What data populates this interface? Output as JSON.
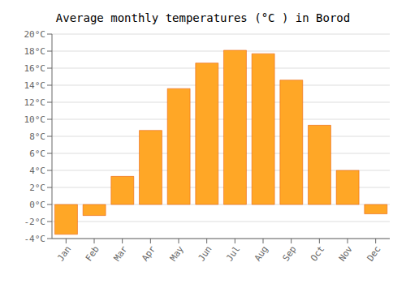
{
  "chart_data": {
    "type": "bar",
    "title": "Average monthly temperatures (°C ) in Borod",
    "categories": [
      "Jan",
      "Feb",
      "Mar",
      "Apr",
      "May",
      "Jun",
      "Jul",
      "Aug",
      "Sep",
      "Oct",
      "Nov",
      "Dec"
    ],
    "values": [
      -3.5,
      -1.3,
      3.3,
      8.7,
      13.6,
      16.6,
      18.1,
      17.7,
      14.6,
      9.3,
      4.0,
      -1.1
    ],
    "color": "#FFA726",
    "ylim": [
      -4,
      20
    ],
    "yticks": [
      {
        "value": -4,
        "label": "-4°C"
      },
      {
        "value": -2,
        "label": "-2°C"
      },
      {
        "value": 0,
        "label": "0°C"
      },
      {
        "value": 2,
        "label": "2°C"
      },
      {
        "value": 4,
        "label": "4°C"
      },
      {
        "value": 6,
        "label": "6°C"
      },
      {
        "value": 8,
        "label": "8°C"
      },
      {
        "value": 10,
        "label": "10°C"
      },
      {
        "value": 12,
        "label": "12°C"
      },
      {
        "value": 14,
        "label": "14°C"
      },
      {
        "value": 16,
        "label": "16°C"
      },
      {
        "value": 18,
        "label": "18°C"
      },
      {
        "value": 20,
        "label": "20°C"
      }
    ],
    "grid": true
  }
}
